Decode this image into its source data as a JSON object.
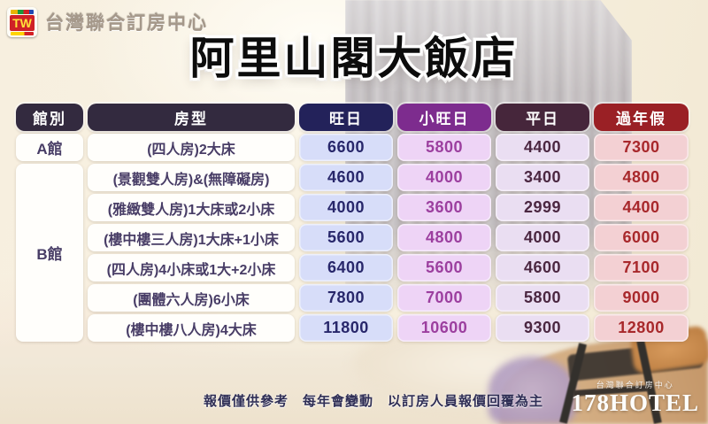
{
  "brand": {
    "tw_logo": "TW",
    "name": "台灣聯合訂房中心"
  },
  "title": "阿里山閣大飯店",
  "table": {
    "headers": [
      "館別",
      "房型",
      "旺日",
      "小旺日",
      "平日",
      "過年假"
    ],
    "halls": [
      {
        "label": "A館"
      },
      {
        "label": "B館"
      }
    ],
    "rows": [
      {
        "room": "(四人房)2大床",
        "prices": [
          "6600",
          "5800",
          "4400",
          "7300"
        ]
      },
      {
        "room": "(景觀雙人房)&(無障礙房)",
        "prices": [
          "4600",
          "4000",
          "3400",
          "4800"
        ]
      },
      {
        "room": "(雅緻雙人房)1大床或2小床",
        "prices": [
          "4000",
          "3600",
          "2999",
          "4400"
        ]
      },
      {
        "room": "(樓中樓三人房)1大床+1小床",
        "prices": [
          "5600",
          "4800",
          "4000",
          "6000"
        ]
      },
      {
        "room": "(四人房)4小床或1大+2小床",
        "prices": [
          "6400",
          "5600",
          "4600",
          "7100"
        ]
      },
      {
        "room": "(團體六人房)6小床",
        "prices": [
          "7800",
          "7000",
          "5800",
          "9000"
        ]
      },
      {
        "room": "(樓中樓八人房)4大床",
        "prices": [
          "11800",
          "10600",
          "9300",
          "12800"
        ]
      }
    ]
  },
  "footer": {
    "disclaimer": "報價僅供參考　每年會變動　以訂房人員報價回覆為主",
    "agency_name": "台灣聯合訂房中心",
    "agency_brand": "178HOTEL"
  },
  "colors": {
    "room_header_bg": "#332a3f",
    "peak_header_bg": "#23225a",
    "small_peak_header_bg": "#7d2c8e",
    "weekday_header_bg": "#46263b",
    "newyear_header_bg": "#9a2025",
    "peak_cell_bg": "#d7ddf9",
    "small_peak_cell_bg": "#eed4f6",
    "weekday_cell_bg": "#eadef2",
    "newyear_cell_bg": "#f3d0d3",
    "peak_text": "#28276b",
    "small_peak_text": "#9c3f9f",
    "weekday_text": "#4b2741",
    "newyear_text": "#a8282b",
    "room_text": "#483d66"
  }
}
